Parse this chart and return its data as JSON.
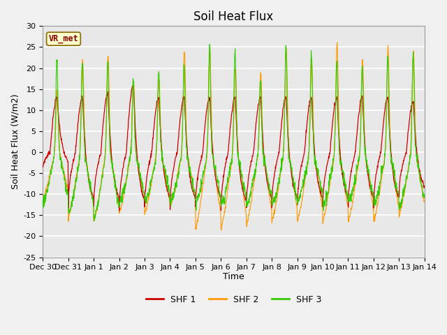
{
  "title": "Soil Heat Flux",
  "xlabel": "Time",
  "ylabel": "Soil Heat Flux (W/m2)",
  "ylim": [
    -25,
    30
  ],
  "yticks": [
    -25,
    -20,
    -15,
    -10,
    -5,
    0,
    5,
    10,
    15,
    20,
    25,
    30
  ],
  "xtick_labels": [
    "Dec 30",
    "Dec 31",
    "Jan 1",
    "Jan 2",
    "Jan 3",
    "Jan 4",
    "Jan 5",
    "Jan 6",
    "Jan 7",
    "Jan 8",
    "Jan 9",
    "Jan 10",
    "Jan 11",
    "Jan 12",
    "Jan 13",
    "Jan 14"
  ],
  "colors": {
    "SHF1": "#cc0000",
    "SHF2": "#ff9900",
    "SHF3": "#33cc00"
  },
  "legend_labels": [
    "SHF 1",
    "SHF 2",
    "SHF 3"
  ],
  "annotation_text": "VR_met",
  "annotation_bg": "#ffffcc",
  "annotation_border": "#886600",
  "background_color": "#e8e8e8",
  "grid_color": "#ffffff",
  "title_fontsize": 12,
  "label_fontsize": 9,
  "tick_fontsize": 8
}
